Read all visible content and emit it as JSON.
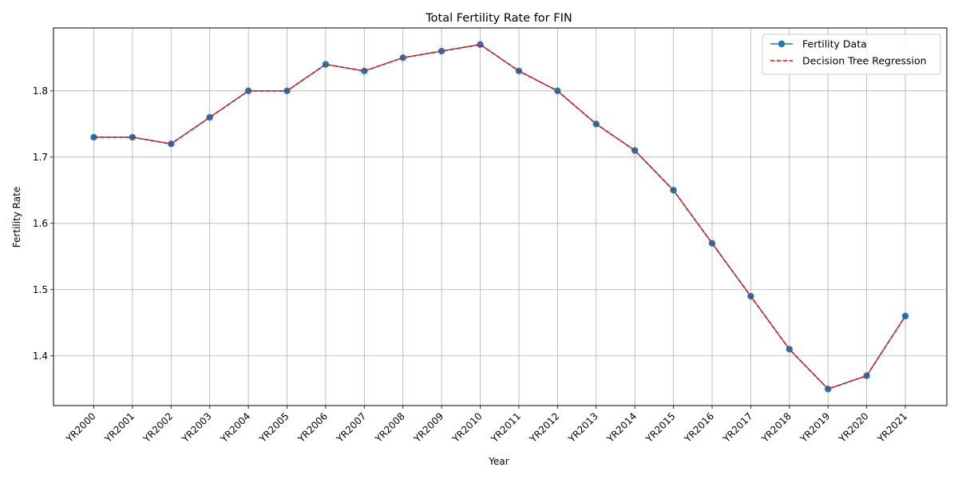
{
  "chart_data": {
    "type": "line",
    "title": "Total Fertility Rate for FIN",
    "xlabel": "Year",
    "ylabel": "Fertility Rate",
    "categories": [
      "YR2000",
      "YR2001",
      "YR2002",
      "YR2003",
      "YR2004",
      "YR2005",
      "YR2006",
      "YR2007",
      "YR2008",
      "YR2009",
      "YR2010",
      "YR2011",
      "YR2012",
      "YR2013",
      "YR2014",
      "YR2015",
      "YR2016",
      "YR2017",
      "YR2018",
      "YR2019",
      "YR2020",
      "YR2021"
    ],
    "ylim": [
      1.325,
      1.895
    ],
    "yticks": [
      1.4,
      1.5,
      1.6,
      1.7,
      1.8
    ],
    "grid": true,
    "legend_position": "top-right",
    "series": [
      {
        "name": "Fertility Data",
        "style": "solid-with-markers",
        "color": "#1f77b4",
        "values": [
          1.73,
          1.73,
          1.72,
          1.76,
          1.8,
          1.8,
          1.84,
          1.83,
          1.85,
          1.86,
          1.87,
          1.83,
          1.8,
          1.75,
          1.71,
          1.65,
          1.57,
          1.49,
          1.41,
          1.35,
          1.37,
          1.46
        ]
      },
      {
        "name": "Decision Tree Regression",
        "style": "dashed",
        "color": "#ff0000",
        "values": [
          1.73,
          1.73,
          1.72,
          1.76,
          1.8,
          1.8,
          1.84,
          1.83,
          1.85,
          1.86,
          1.87,
          1.83,
          1.8,
          1.75,
          1.71,
          1.65,
          1.57,
          1.49,
          1.41,
          1.35,
          1.37,
          1.46
        ]
      }
    ]
  }
}
